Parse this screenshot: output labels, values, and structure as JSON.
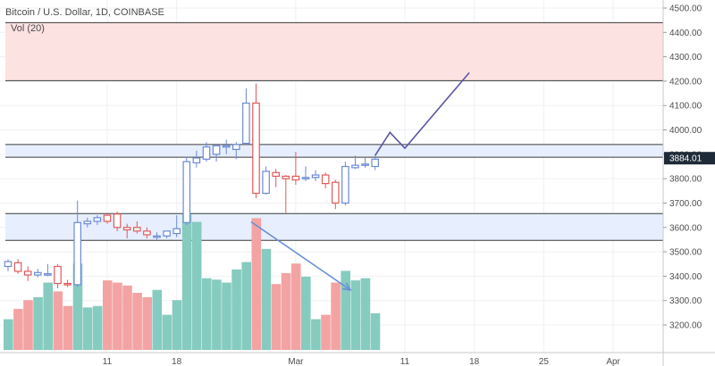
{
  "header": {
    "symbol_title": "Bitcoin / U.S. Dollar, 1D, COINBASE",
    "volume_label": "Vol (20)"
  },
  "colors": {
    "up": "#6a8ad6",
    "down": "#e05a5a",
    "vol_up": "#86cbbf",
    "vol_down": "#f3a3a3",
    "zone_blue": "#e7efff",
    "zone_red": "#fde2e2",
    "grid": "#eef0f3",
    "projection": "#5b57a6",
    "price_tag_bg": "#1e2a38"
  },
  "chart_data": {
    "type": "candlestick",
    "x_axis_labels": [
      "11",
      "18",
      "Mar",
      "11",
      "18",
      "25",
      "Apr"
    ],
    "y_ticks": [
      3200,
      3300,
      3400,
      3500,
      3600,
      3700,
      3800,
      3900,
      4000,
      4100,
      4200,
      4300,
      4400,
      4500
    ],
    "y_tick_labels": [
      "3200.00",
      "3300.00",
      "3400.00",
      "3500.00",
      "3600.00",
      "3700.00",
      "3800.00",
      "3900.00",
      "4000.00",
      "4100.00",
      "4200.00",
      "4300.00",
      "4400.00",
      "4500.00"
    ],
    "ylim": [
      3150,
      4520
    ],
    "last_price": 3884.01,
    "last_price_label": "3884.01",
    "candles": [
      {
        "o": 3440,
        "h": 3470,
        "l": 3420,
        "c": 3460
      },
      {
        "o": 3455,
        "h": 3470,
        "l": 3410,
        "c": 3420
      },
      {
        "o": 3420,
        "h": 3440,
        "l": 3380,
        "c": 3405
      },
      {
        "o": 3405,
        "h": 3430,
        "l": 3395,
        "c": 3415
      },
      {
        "o": 3410,
        "h": 3450,
        "l": 3400,
        "c": 3410
      },
      {
        "o": 3440,
        "h": 3450,
        "l": 3350,
        "c": 3370
      },
      {
        "o": 3370,
        "h": 3385,
        "l": 3355,
        "c": 3365
      },
      {
        "o": 3365,
        "h": 3710,
        "l": 3355,
        "c": 3620
      },
      {
        "o": 3615,
        "h": 3640,
        "l": 3600,
        "c": 3625
      },
      {
        "o": 3625,
        "h": 3650,
        "l": 3610,
        "c": 3640
      },
      {
        "o": 3650,
        "h": 3660,
        "l": 3615,
        "c": 3625
      },
      {
        "o": 3655,
        "h": 3665,
        "l": 3585,
        "c": 3600
      },
      {
        "o": 3600,
        "h": 3615,
        "l": 3555,
        "c": 3590
      },
      {
        "o": 3600,
        "h": 3625,
        "l": 3575,
        "c": 3585
      },
      {
        "o": 3585,
        "h": 3600,
        "l": 3555,
        "c": 3570
      },
      {
        "o": 3565,
        "h": 3580,
        "l": 3550,
        "c": 3565
      },
      {
        "o": 3565,
        "h": 3585,
        "l": 3555,
        "c": 3585
      },
      {
        "o": 3575,
        "h": 3650,
        "l": 3560,
        "c": 3595
      },
      {
        "o": 3620,
        "h": 3890,
        "l": 3610,
        "c": 3870
      },
      {
        "o": 3865,
        "h": 3915,
        "l": 3845,
        "c": 3885
      },
      {
        "o": 3880,
        "h": 3950,
        "l": 3870,
        "c": 3930
      },
      {
        "o": 3900,
        "h": 3935,
        "l": 3870,
        "c": 3935
      },
      {
        "o": 3930,
        "h": 3960,
        "l": 3900,
        "c": 3935
      },
      {
        "o": 3920,
        "h": 3950,
        "l": 3880,
        "c": 3940
      },
      {
        "o": 3945,
        "h": 4170,
        "l": 3940,
        "c": 4110
      },
      {
        "o": 4110,
        "h": 4190,
        "l": 3720,
        "c": 3740
      },
      {
        "o": 3740,
        "h": 3850,
        "l": 3735,
        "c": 3830
      },
      {
        "o": 3825,
        "h": 3840,
        "l": 3765,
        "c": 3810
      },
      {
        "o": 3810,
        "h": 3815,
        "l": 3660,
        "c": 3800
      },
      {
        "o": 3810,
        "h": 3910,
        "l": 3775,
        "c": 3795
      },
      {
        "o": 3800,
        "h": 3850,
        "l": 3790,
        "c": 3805
      },
      {
        "o": 3805,
        "h": 3835,
        "l": 3790,
        "c": 3815
      },
      {
        "o": 3815,
        "h": 3825,
        "l": 3760,
        "c": 3780
      },
      {
        "o": 3785,
        "h": 3795,
        "l": 3675,
        "c": 3700
      },
      {
        "o": 3700,
        "h": 3870,
        "l": 3690,
        "c": 3850
      },
      {
        "o": 3845,
        "h": 3895,
        "l": 3840,
        "c": 3855
      },
      {
        "o": 3855,
        "h": 3885,
        "l": 3845,
        "c": 3860
      },
      {
        "o": 3850,
        "h": 3895,
        "l": 3835,
        "c": 3880
      }
    ],
    "volume": [
      42,
      56,
      68,
      72,
      92,
      80,
      60,
      118,
      58,
      60,
      95,
      92,
      88,
      78,
      72,
      82,
      48,
      68,
      185,
      175,
      98,
      96,
      92,
      110,
      120,
      180,
      138,
      90,
      105,
      118,
      100,
      42,
      48,
      92,
      108,
      95,
      98,
      50
    ],
    "volume_max": 200,
    "annotations": {
      "support_zone": [
        3547,
        3657
      ],
      "resistance_zone": [
        3888,
        3940
      ],
      "target_zone": [
        4202,
        4440
      ],
      "projection_path": [
        [
          37.0,
          3895
        ],
        [
          38.5,
          3990
        ],
        [
          40.0,
          3925
        ],
        [
          46.5,
          4235
        ]
      ],
      "volume_trend_arrow": [
        [
          24.5,
          175
        ],
        [
          34.5,
          82
        ]
      ]
    }
  }
}
